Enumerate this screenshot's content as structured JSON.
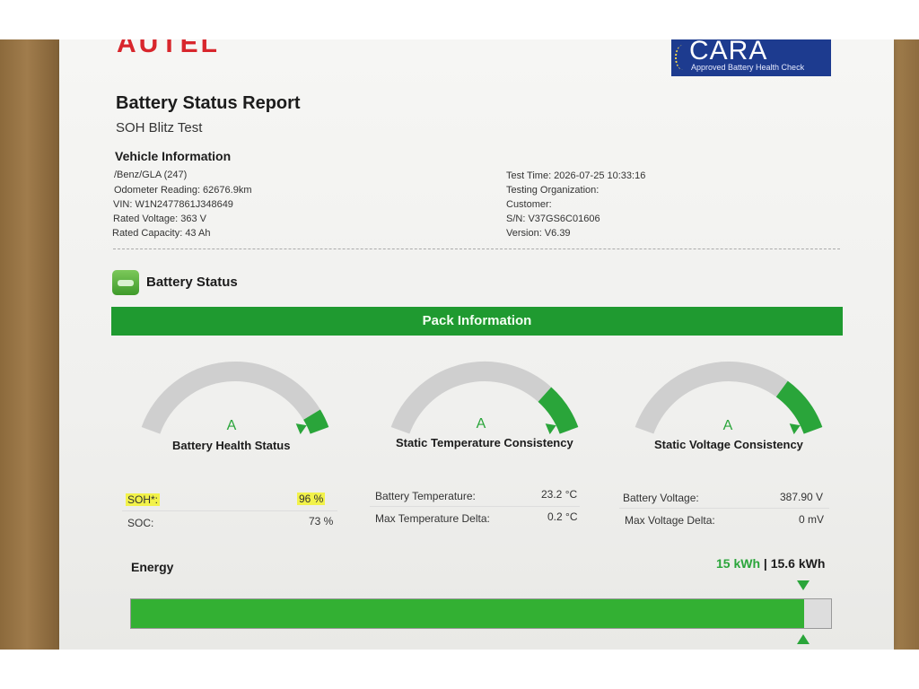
{
  "header": {
    "logo_text": "AUTEL",
    "badge_title": "CARA",
    "badge_subtitle": "Approved Battery Health Check",
    "title": "Battery Status Report",
    "subtitle": "SOH Blitz Test"
  },
  "vehicle": {
    "heading": "Vehicle Information",
    "left": [
      "/Benz/GLA (247)",
      "Odometer Reading: 62676.9km",
      "VIN: W1N2477861J348649",
      "Rated Voltage: 363 V",
      "Rated Capacity: 43 Ah"
    ],
    "right": [
      "Test Time: 2026-07-25 10:33:16",
      "Testing Organization:",
      "Customer:",
      "S/N: V37GS6C01606",
      "Version: V6.39"
    ]
  },
  "battery_status": {
    "label": "Battery Status",
    "banner": "Pack Information",
    "gauges": [
      {
        "grade": "A",
        "label": "Battery Health Status",
        "level": 0.92,
        "rows": [
          {
            "name": "SOH*:",
            "value": "96 %",
            "highlight": true
          },
          {
            "name": "SOC:",
            "value": "73 %",
            "highlight": false
          }
        ]
      },
      {
        "grade": "A",
        "label": "Static Temperature Consistency",
        "level": 0.8,
        "rows": [
          {
            "name": "Battery Temperature:",
            "value": "23.2 °C",
            "highlight": false
          },
          {
            "name": "Max Temperature Delta:",
            "value": "0.2 °C",
            "highlight": false
          }
        ]
      },
      {
        "grade": "A",
        "label": "Static Voltage Consistency",
        "level": 0.76,
        "rows": [
          {
            "name": "Battery Voltage:",
            "value": "387.90 V",
            "highlight": false
          },
          {
            "name": "Max Voltage Delta:",
            "value": "0 mV",
            "highlight": false
          }
        ]
      }
    ]
  },
  "energy": {
    "label": "Energy",
    "current": "15 kWh",
    "separator": " | ",
    "total": "15.6 kWh",
    "fill_fraction": 0.962
  },
  "colors": {
    "accent_green": "#1f9a30",
    "gauge_grey": "#cfcfcf",
    "brand_red": "#d8262c",
    "badge_blue": "#1d3b8f"
  }
}
